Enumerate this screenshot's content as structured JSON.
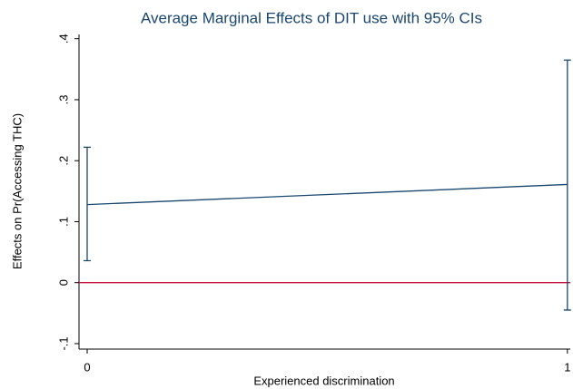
{
  "chart_data": {
    "type": "line",
    "title": "Average Marginal Effects of DIT use with 95% CIs",
    "x_label": "Experienced discrimination",
    "y_label": "Effects on Pr(Accessing THC)",
    "x": [
      0,
      1
    ],
    "series": [
      {
        "color": "#1a476f",
        "values": [
          0.128,
          0.161
        ],
        "ci_lower": [
          0.036,
          -0.045
        ],
        "ci_upper": [
          0.222,
          0.365
        ]
      }
    ],
    "hline": 0,
    "hline_color": "#c0143c",
    "xlim": [
      -0.017,
      1.006
    ],
    "xticks": [
      0,
      1
    ],
    "ylim": [
      -0.109,
      0.407
    ],
    "yticks": [
      {
        "value": -0.1,
        "label": "-.1"
      },
      0,
      {
        "value": 0.1,
        "label": ".1"
      },
      {
        "value": 0.2,
        "label": ".2"
      },
      {
        "value": 0.3,
        "label": ".3"
      },
      {
        "value": 0.4,
        "label": ".4"
      }
    ]
  }
}
